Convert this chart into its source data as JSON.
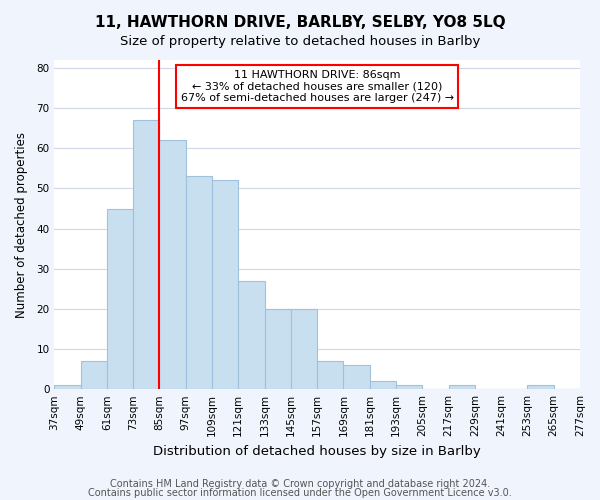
{
  "title1": "11, HAWTHORN DRIVE, BARLBY, SELBY, YO8 5LQ",
  "title2": "Size of property relative to detached houses in Barlby",
  "xlabel": "Distribution of detached houses by size in Barlby",
  "ylabel": "Number of detached properties",
  "bin_edges": [
    37,
    49,
    61,
    73,
    85,
    97,
    109,
    121,
    133,
    145,
    157,
    169,
    181,
    193,
    205,
    217,
    229,
    241,
    253,
    265,
    277
  ],
  "bar_heights": [
    1,
    7,
    45,
    67,
    62,
    53,
    52,
    27,
    20,
    20,
    7,
    6,
    2,
    1,
    0,
    1,
    0,
    0,
    1,
    0
  ],
  "bar_color": "#c8dff0",
  "bar_edgecolor": "#a0c0de",
  "grid_color": "#d0d8e8",
  "background_color": "#f0f4fc",
  "ax_background_color": "#ffffff",
  "red_line_x": 85,
  "annotation_text": "11 HAWTHORN DRIVE: 86sqm\n← 33% of detached houses are smaller (120)\n67% of semi-detached houses are larger (247) →",
  "annotation_box_color": "white",
  "annotation_box_edgecolor": "red",
  "ylim": [
    0,
    82
  ],
  "tick_labels": [
    "37sqm",
    "49sqm",
    "61sqm",
    "73sqm",
    "85sqm",
    "97sqm",
    "109sqm",
    "121sqm",
    "133sqm",
    "145sqm",
    "157sqm",
    "169sqm",
    "181sqm",
    "193sqm",
    "205sqm",
    "217sqm",
    "229sqm",
    "241sqm",
    "253sqm",
    "265sqm",
    "277sqm"
  ],
  "footer1": "Contains HM Land Registry data © Crown copyright and database right 2024.",
  "footer2": "Contains public sector information licensed under the Open Government Licence v3.0.",
  "title1_fontsize": 11,
  "title2_fontsize": 9.5,
  "xlabel_fontsize": 9.5,
  "ylabel_fontsize": 8.5,
  "tick_fontsize": 7.5,
  "annotation_fontsize": 8,
  "footer_fontsize": 7
}
